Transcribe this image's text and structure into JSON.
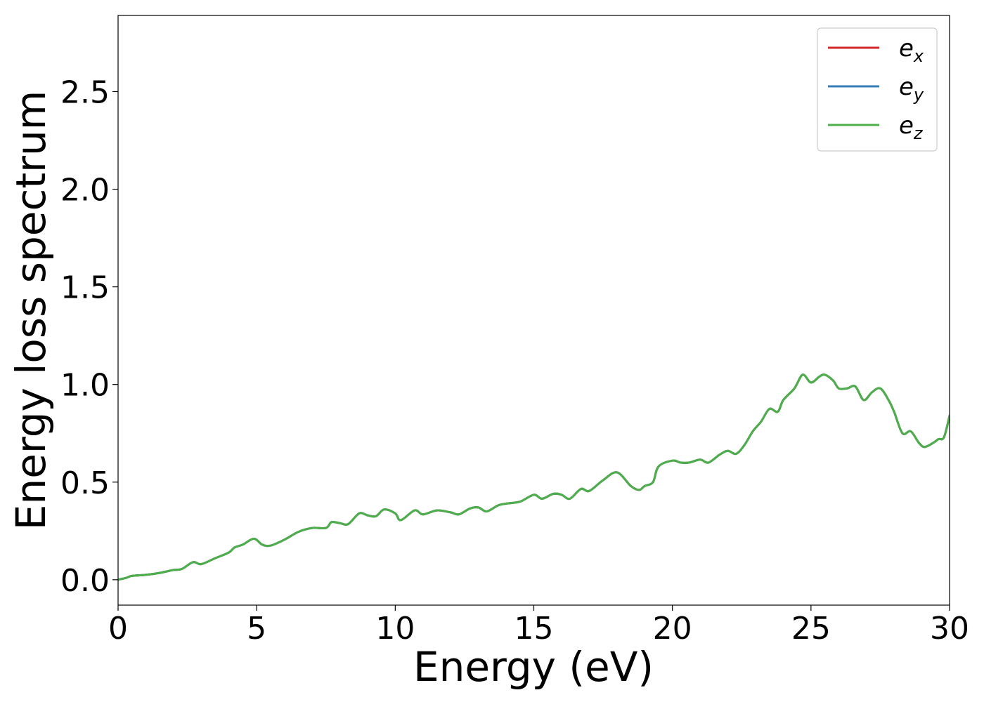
{
  "chart_data": {
    "type": "line",
    "title": "",
    "xlabel": "Energy (eV)",
    "ylabel": "Energy loss spectrum",
    "xlim": [
      0,
      30
    ],
    "ylim": [
      -0.13,
      2.89
    ],
    "x_ticks": [
      0,
      5,
      10,
      15,
      20,
      25,
      30
    ],
    "x_tick_labels": [
      "0",
      "5",
      "10",
      "15",
      "20",
      "25",
      "30"
    ],
    "y_ticks": [
      0.0,
      0.5,
      1.0,
      1.5,
      2.0,
      2.5
    ],
    "y_tick_labels": [
      "0.0",
      "0.5",
      "1.0",
      "1.5",
      "2.0",
      "2.5"
    ],
    "grid": false,
    "legend": "top-right",
    "x": [
      0.0,
      0.3,
      0.5,
      1.0,
      1.5,
      2.0,
      2.3,
      2.7,
      3.0,
      3.5,
      4.0,
      4.2,
      4.5,
      4.9,
      5.2,
      5.5,
      6.0,
      6.5,
      7.0,
      7.5,
      7.7,
      8.0,
      8.3,
      8.7,
      9.0,
      9.3,
      9.6,
      10.0,
      10.2,
      10.7,
      11.0,
      11.5,
      12.0,
      12.3,
      12.7,
      13.0,
      13.3,
      13.7,
      14.0,
      14.5,
      15.0,
      15.3,
      15.7,
      16.0,
      16.3,
      16.7,
      17.0,
      17.5,
      18.0,
      18.5,
      18.8,
      19.0,
      19.3,
      19.5,
      20.0,
      20.3,
      20.6,
      21.0,
      21.3,
      21.7,
      22.0,
      22.3,
      22.6,
      22.9,
      23.2,
      23.5,
      23.8,
      24.0,
      24.4,
      24.7,
      25.0,
      25.3,
      25.5,
      25.8,
      26.0,
      26.3,
      26.6,
      26.9,
      27.2,
      27.5,
      27.8,
      28.0,
      28.3,
      28.6,
      28.9,
      29.1,
      29.4,
      29.6,
      29.8,
      30.0
    ],
    "series": [
      {
        "name": "e_x",
        "name_base": "e",
        "name_sub": "x",
        "color": "#d62728",
        "values": [
          0.0,
          0.01,
          0.02,
          0.025,
          0.035,
          0.05,
          0.055,
          0.09,
          0.08,
          0.11,
          0.14,
          0.165,
          0.18,
          0.21,
          0.18,
          0.175,
          0.205,
          0.245,
          0.265,
          0.265,
          0.295,
          0.29,
          0.285,
          0.34,
          0.33,
          0.325,
          0.36,
          0.34,
          0.305,
          0.355,
          0.335,
          0.355,
          0.345,
          0.335,
          0.365,
          0.37,
          0.35,
          0.38,
          0.39,
          0.4,
          0.435,
          0.415,
          0.44,
          0.435,
          0.415,
          0.465,
          0.455,
          0.51,
          0.55,
          0.48,
          0.46,
          0.48,
          0.5,
          0.58,
          0.61,
          0.6,
          0.6,
          0.615,
          0.6,
          0.64,
          0.66,
          0.645,
          0.69,
          0.76,
          0.81,
          0.875,
          0.86,
          0.92,
          0.98,
          1.05,
          1.01,
          1.04,
          1.05,
          1.02,
          0.98,
          0.98,
          0.99,
          0.92,
          0.96,
          0.98,
          0.92,
          0.86,
          0.75,
          0.76,
          0.7,
          0.68,
          0.7,
          0.72,
          0.73,
          0.84
        ]
      },
      {
        "name": "e_y",
        "name_base": "e",
        "name_sub": "y",
        "color": "#377eb8",
        "values": [
          0.0,
          0.01,
          0.02,
          0.025,
          0.035,
          0.05,
          0.055,
          0.09,
          0.08,
          0.11,
          0.14,
          0.165,
          0.18,
          0.21,
          0.18,
          0.175,
          0.205,
          0.245,
          0.265,
          0.265,
          0.295,
          0.29,
          0.285,
          0.34,
          0.33,
          0.325,
          0.36,
          0.34,
          0.305,
          0.355,
          0.335,
          0.355,
          0.345,
          0.335,
          0.365,
          0.37,
          0.35,
          0.38,
          0.39,
          0.4,
          0.435,
          0.415,
          0.44,
          0.435,
          0.415,
          0.465,
          0.455,
          0.51,
          0.55,
          0.48,
          0.46,
          0.48,
          0.5,
          0.58,
          0.61,
          0.6,
          0.6,
          0.615,
          0.6,
          0.64,
          0.66,
          0.645,
          0.69,
          0.76,
          0.81,
          0.875,
          0.86,
          0.92,
          0.98,
          1.05,
          1.01,
          1.04,
          1.05,
          1.02,
          0.98,
          0.98,
          0.99,
          0.92,
          0.96,
          0.98,
          0.92,
          0.86,
          0.75,
          0.76,
          0.7,
          0.68,
          0.7,
          0.72,
          0.73,
          0.84
        ]
      },
      {
        "name": "e_z",
        "name_base": "e",
        "name_sub": "z",
        "color": "#4daf4a",
        "values": [
          0.0,
          0.01,
          0.02,
          0.025,
          0.035,
          0.05,
          0.055,
          0.09,
          0.08,
          0.11,
          0.14,
          0.165,
          0.18,
          0.21,
          0.18,
          0.175,
          0.205,
          0.245,
          0.265,
          0.265,
          0.295,
          0.29,
          0.285,
          0.34,
          0.33,
          0.325,
          0.36,
          0.34,
          0.305,
          0.355,
          0.335,
          0.355,
          0.345,
          0.335,
          0.365,
          0.37,
          0.35,
          0.38,
          0.39,
          0.4,
          0.435,
          0.415,
          0.44,
          0.435,
          0.415,
          0.465,
          0.455,
          0.51,
          0.55,
          0.48,
          0.46,
          0.48,
          0.5,
          0.58,
          0.61,
          0.6,
          0.6,
          0.615,
          0.6,
          0.64,
          0.66,
          0.645,
          0.69,
          0.76,
          0.81,
          0.875,
          0.86,
          0.92,
          0.98,
          1.05,
          1.01,
          1.04,
          1.05,
          1.02,
          0.98,
          0.98,
          0.99,
          0.92,
          0.96,
          0.98,
          0.92,
          0.86,
          0.75,
          0.76,
          0.7,
          0.68,
          0.7,
          0.72,
          0.73,
          0.84
        ]
      }
    ]
  }
}
